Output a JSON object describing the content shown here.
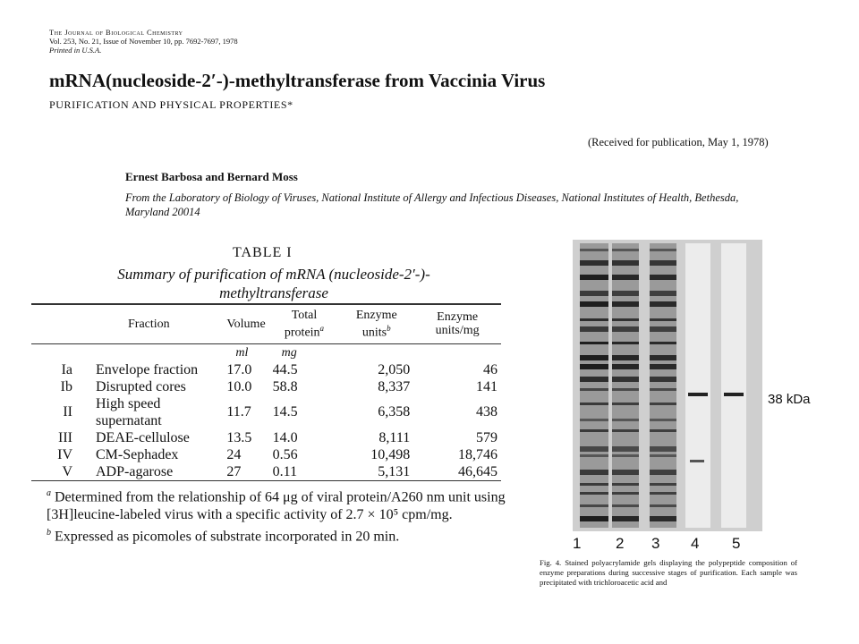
{
  "journal": {
    "name": "The Journal of Biological Chemistry",
    "citation": "Vol. 253, No. 21, Issue of November 10, pp. 7692-7697, 1978",
    "printed": "Printed in U.S.A."
  },
  "title": "mRNA(nucleoside-2′-)-methyltransferase from Vaccinia Virus",
  "subtitle": "PURIFICATION AND PHYSICAL PROPERTIES*",
  "received": "(Received for publication, May 1, 1978)",
  "authors": "Ernest Barbosa and Bernard Moss",
  "affiliation": "From the Laboratory of Biology of Viruses, National Institute of Allergy and Infectious Diseases, National Institutes of Health, Bethesda, Maryland 20014",
  "table": {
    "label": "TABLE I",
    "caption": "Summary of purification of mRNA (nucleoside-2′-)-methyltransferase",
    "headers": [
      "Fraction",
      "Volume",
      "Total protein",
      "Enzyme units",
      "Enzyme units/mg"
    ],
    "header_notes": [
      "a",
      "b"
    ],
    "units": [
      "ml",
      "mg"
    ],
    "rows": [
      [
        "Ia",
        "Envelope fraction",
        "17.0",
        "44.5",
        "2,050",
        "46"
      ],
      [
        "Ib",
        "Disrupted cores",
        "10.0",
        "58.8",
        "8,337",
        "141"
      ],
      [
        "II",
        "High speed supernatant",
        "11.7",
        "14.5",
        "6,358",
        "438"
      ],
      [
        "III",
        "DEAE-cellulose",
        "13.5",
        "14.0",
        "8,111",
        "579"
      ],
      [
        "IV",
        "CM-Sephadex",
        "24",
        "0.56",
        "10,498",
        "18,746"
      ],
      [
        "V",
        "ADP-agarose",
        "27",
        "0.11",
        "5,131",
        "46,645"
      ]
    ],
    "footnote_a": "Determined from the relationship of 64 μg of viral protein/A260 nm unit using [3H]leucine-labeled virus with a specific activity of 2.7 × 10⁵ cpm/mg.",
    "footnote_b": "Expressed as picomoles of substrate incorporated in 20 min."
  },
  "gel": {
    "lane_labels": [
      "1",
      "2",
      "3",
      "4",
      "5"
    ],
    "marker_label": "38 kDa"
  },
  "figure_caption": "Fig. 4. Stained polyacrylamide gels displaying the polypeptide composition of enzyme preparations during successive stages of purification. Each sample was precipitated with trichloroacetic acid and"
}
